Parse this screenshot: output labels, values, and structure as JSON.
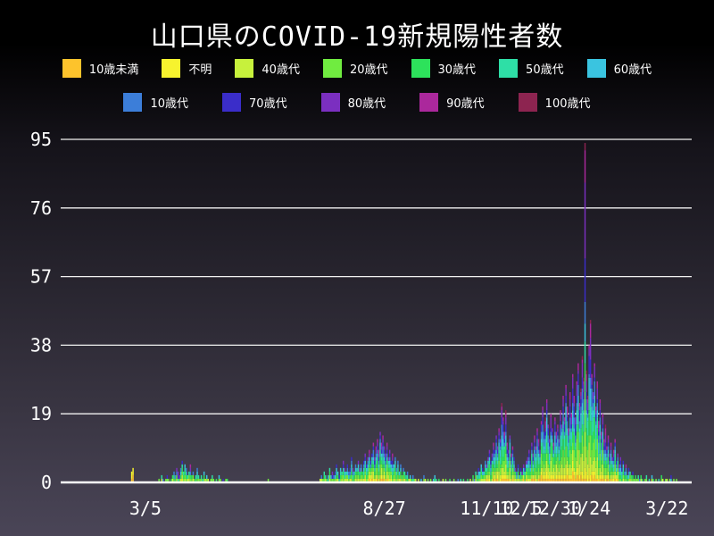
{
  "title": "山口県のCOVID-19新規陽性者数",
  "chart_data": {
    "type": "bar",
    "subtype": "stacked-daily-bars",
    "title": "山口県のCOVID-19新規陽性者数",
    "xlabel": "",
    "ylabel": "",
    "ylim": [
      0,
      95
    ],
    "y_ticks": [
      0,
      19,
      38,
      57,
      76,
      95
    ],
    "grid": true,
    "legend_position": "top-two-rows",
    "background": {
      "top": "#000000",
      "mid": "#15131a",
      "lower": "#383441",
      "bottom": "#4a4557"
    },
    "grid_color": "#f2f2f2",
    "axis_color": "#ffffff",
    "text_color": "#ffffff",
    "age_groups": [
      {
        "label": "10歳未満",
        "color": "#fdc32c",
        "row": 1
      },
      {
        "label": "不明",
        "color": "#f7f32e",
        "row": 1
      },
      {
        "label": "40歳代",
        "color": "#c7f13c",
        "row": 1
      },
      {
        "label": "20歳代",
        "color": "#70ec40",
        "row": 1
      },
      {
        "label": "30歳代",
        "color": "#2de25b",
        "row": 1
      },
      {
        "label": "50歳代",
        "color": "#2edfa6",
        "row": 1
      },
      {
        "label": "60歳代",
        "color": "#3ac4e0",
        "row": 1
      },
      {
        "label": "10歳代",
        "color": "#3c7ed9",
        "row": 2
      },
      {
        "label": "70歳代",
        "color": "#3a2dc9",
        "row": 2
      },
      {
        "label": "80歳代",
        "color": "#7b2fc0",
        "row": 2
      },
      {
        "label": "90歳代",
        "color": "#ab289c",
        "row": 2
      },
      {
        "label": "100歳代",
        "color": "#8d2450",
        "row": 2
      }
    ],
    "x_ticks": [
      {
        "label": "3/5",
        "day": 10
      },
      {
        "label": "8/27",
        "day": 185
      },
      {
        "label": "11/10",
        "day": 260
      },
      {
        "label": "12/5",
        "day": 285
      },
      {
        "label": "12/30",
        "day": 310
      },
      {
        "label": "1/24",
        "day": 335
      },
      {
        "label": "3/22",
        "day": 392
      }
    ],
    "peak": {
      "day": 332,
      "value": 94
    },
    "daily_totals_segments": [
      {
        "start_day": 0,
        "values": [
          3,
          4
        ]
      },
      {
        "start_day": 20,
        "values": [
          1,
          0,
          2,
          1,
          0,
          1,
          2,
          1,
          0,
          1,
          2,
          3,
          2,
          4,
          3,
          2,
          4,
          6,
          3,
          5,
          4,
          2,
          3,
          5,
          2,
          3,
          1,
          2,
          4,
          2,
          1,
          2,
          1,
          3,
          1,
          2,
          1,
          0,
          1,
          2,
          1,
          0,
          1,
          0,
          2,
          1,
          0,
          1,
          0,
          1,
          1
        ]
      },
      {
        "start_day": 100,
        "values": [
          1
        ]
      },
      {
        "start_day": 138,
        "values": [
          1,
          2,
          1,
          3,
          2,
          1,
          2,
          4,
          2,
          3,
          2,
          3,
          5,
          3,
          2,
          4,
          3,
          6,
          4,
          3,
          5,
          3,
          4,
          7,
          4,
          3,
          5,
          4,
          6,
          4,
          5,
          3,
          6,
          8,
          5,
          7,
          9,
          6,
          8,
          11,
          7,
          10,
          12,
          9,
          14,
          11,
          13,
          10,
          8,
          11,
          7,
          9,
          6,
          8,
          5,
          7,
          4,
          6,
          3,
          5,
          2,
          4,
          3,
          2,
          3,
          1,
          2,
          1,
          2,
          1,
          1,
          0,
          1
        ]
      },
      {
        "start_day": 212,
        "values": [
          1,
          0,
          2,
          1,
          0,
          1,
          0,
          1,
          0,
          1,
          2,
          1,
          0,
          1,
          0,
          0,
          1,
          0,
          1,
          0,
          0,
          1,
          0,
          0,
          1,
          0,
          0,
          1,
          0,
          1,
          0,
          1,
          0,
          0,
          1,
          0,
          1,
          0,
          2
        ]
      },
      {
        "start_day": 251,
        "values": [
          1,
          3,
          2,
          4,
          3,
          5,
          4,
          3,
          6,
          5,
          7,
          9,
          6,
          8,
          11,
          9,
          13,
          10,
          15,
          12,
          22,
          18,
          14,
          20,
          11,
          9,
          13,
          8,
          10,
          7,
          4,
          3,
          5,
          2,
          4,
          3,
          5,
          4,
          6,
          7,
          9,
          6,
          11,
          8,
          13,
          10,
          15,
          12,
          9,
          17,
          21,
          14,
          18,
          23,
          16,
          12,
          19,
          15,
          11,
          18,
          14,
          16
        ]
      },
      {
        "start_day": 313,
        "values": [
          12,
          20,
          16,
          24,
          18,
          27,
          21,
          15,
          25,
          19,
          30,
          24,
          18,
          28,
          33,
          22,
          26,
          35,
          29,
          94,
          31,
          24,
          38,
          45,
          30,
          25,
          33,
          21,
          28,
          17,
          23,
          14,
          19,
          12,
          16,
          10,
          13,
          8,
          11,
          7,
          9,
          12,
          6,
          8,
          5,
          7,
          4,
          6,
          3,
          5,
          2,
          4,
          3,
          2,
          3,
          1,
          2,
          1,
          2,
          1,
          2,
          1,
          0,
          1,
          2,
          0,
          1,
          0,
          2,
          1,
          0,
          1,
          0,
          1,
          0,
          2,
          1,
          0,
          1,
          1,
          0,
          1,
          2,
          0,
          1,
          0,
          1
        ]
      }
    ],
    "stack_overrides": {
      "0": [
        1,
        2,
        0,
        0,
        0,
        0,
        0,
        0,
        0,
        0,
        0,
        0
      ],
      "1": [
        2,
        2,
        0,
        0,
        0,
        0,
        0,
        0,
        0,
        0,
        0,
        0
      ],
      "332": [
        1,
        3,
        10,
        11,
        8,
        6,
        5,
        6,
        12,
        21,
        9,
        2
      ],
      "336": [
        0,
        2,
        5,
        6,
        4,
        4,
        5,
        3,
        5,
        6,
        4,
        1
      ]
    },
    "stack_weights": [
      0.05,
      0.05,
      0.11,
      0.14,
      0.12,
      0.11,
      0.1,
      0.09,
      0.08,
      0.07,
      0.05,
      0.015
    ]
  }
}
